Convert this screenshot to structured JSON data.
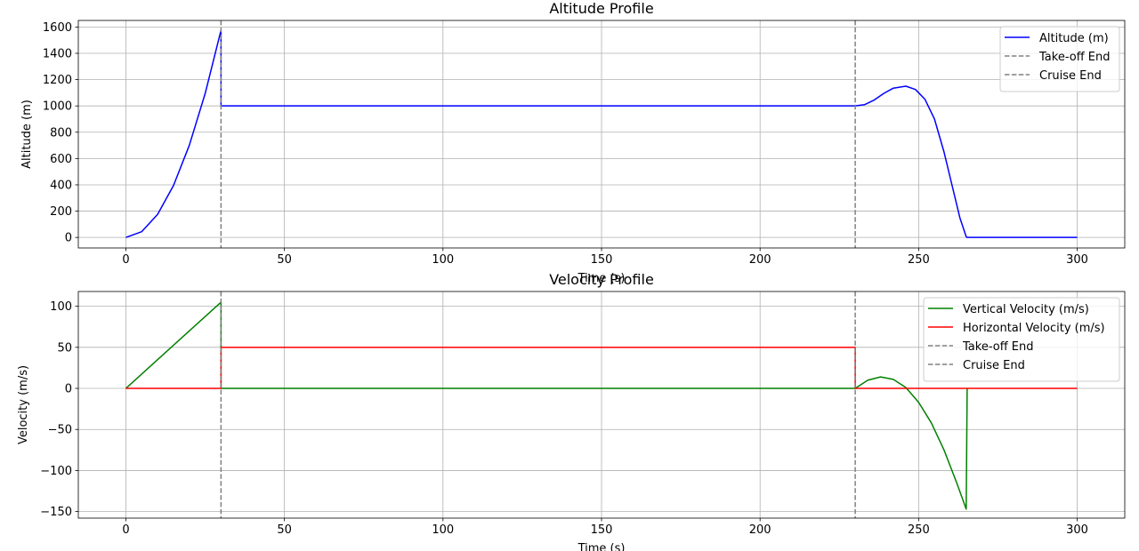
{
  "chart_data": [
    {
      "type": "line",
      "title": "Altitude Profile",
      "xlabel": "Time (s)",
      "ylabel": "Altitude (m)",
      "xlim": [
        -15,
        315
      ],
      "ylim": [
        -80,
        1650
      ],
      "xticks": [
        0,
        50,
        100,
        150,
        200,
        250,
        300
      ],
      "yticks": [
        0,
        200,
        400,
        600,
        800,
        1000,
        1200,
        1400,
        1600
      ],
      "xtick_labels": [
        "0",
        "50",
        "100",
        "150",
        "200",
        "250",
        "300"
      ],
      "ytick_labels": [
        "0",
        "200",
        "400",
        "600",
        "800",
        "1000",
        "1200",
        "1400",
        "1600"
      ],
      "grid": true,
      "legend_position": "top-right",
      "vlines": [
        {
          "name": "Take-off End",
          "x": 30,
          "color": "#808080",
          "style": "dashed"
        },
        {
          "name": "Cruise End",
          "x": 230,
          "color": "#808080",
          "style": "dashed"
        }
      ],
      "series": [
        {
          "name": "Altitude (m)",
          "color": "#0000ff",
          "x": [
            0,
            5,
            10,
            15,
            20,
            25,
            30,
            30,
            230,
            233,
            236,
            239,
            242,
            246,
            249,
            252,
            255,
            258,
            261,
            263,
            265,
            265.2,
            300
          ],
          "y": [
            0,
            44,
            175,
            394,
            700,
            1094,
            1575,
            1000,
            1000,
            1010,
            1045,
            1095,
            1135,
            1150,
            1125,
            1050,
            900,
            650,
            350,
            150,
            5,
            0,
            0
          ]
        }
      ]
    },
    {
      "type": "line",
      "title": "Velocity Profile",
      "xlabel": "Time (s)",
      "ylabel": "Velocity (m/s)",
      "xlim": [
        -15,
        315
      ],
      "ylim": [
        -158,
        118
      ],
      "xticks": [
        0,
        50,
        100,
        150,
        200,
        250,
        300
      ],
      "yticks": [
        -150,
        -100,
        -50,
        0,
        50,
        100
      ],
      "xtick_labels": [
        "0",
        "50",
        "100",
        "150",
        "200",
        "250",
        "300"
      ],
      "ytick_labels": [
        "−150",
        "−100",
        "−50",
        "0",
        "50",
        "100"
      ],
      "grid": true,
      "legend_position": "top-right",
      "vlines": [
        {
          "name": "Take-off End",
          "x": 30,
          "color": "#808080",
          "style": "dashed"
        },
        {
          "name": "Cruise End",
          "x": 230,
          "color": "#808080",
          "style": "dashed"
        }
      ],
      "series": [
        {
          "name": "Vertical Velocity (m/s)",
          "color": "#008000",
          "x": [
            0,
            30,
            30,
            230,
            234,
            238,
            242,
            246,
            250,
            254,
            258,
            262,
            265,
            265,
            265.3
          ],
          "y": [
            0,
            105,
            0,
            0,
            10,
            14,
            11,
            1,
            -17,
            -42,
            -75,
            -115,
            -147,
            -147,
            0
          ]
        },
        {
          "name": "Horizontal Velocity (m/s)",
          "color": "#ff0000",
          "x": [
            0,
            30,
            30,
            230,
            230,
            300
          ],
          "y": [
            0,
            0,
            50,
            50,
            0,
            0
          ]
        }
      ]
    }
  ]
}
